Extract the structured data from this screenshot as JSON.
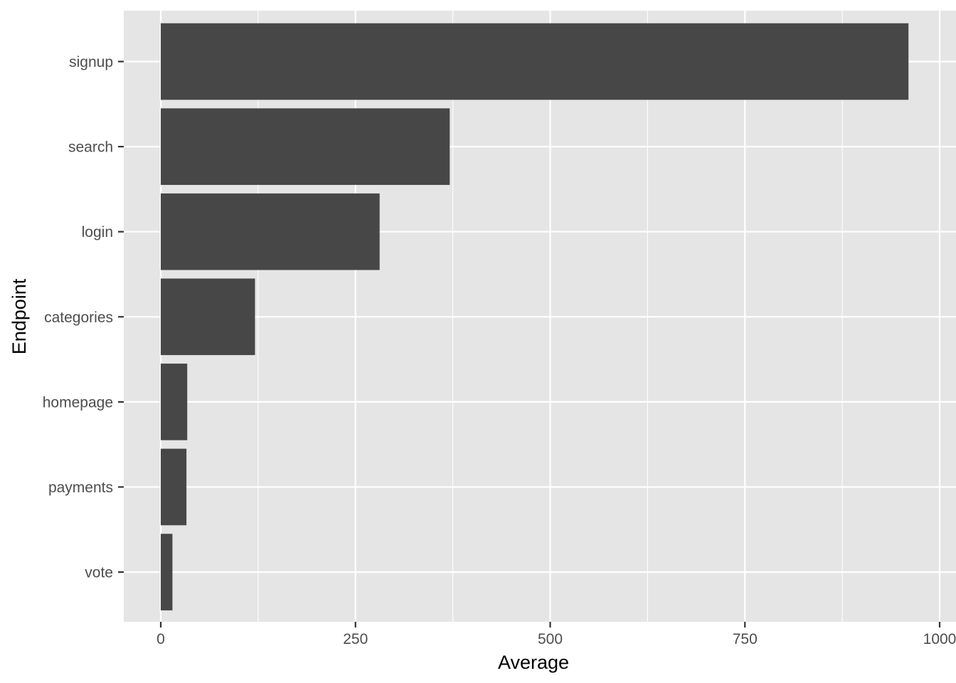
{
  "chart_data": {
    "type": "bar",
    "orientation": "horizontal",
    "categories": [
      "signup",
      "search",
      "login",
      "categories",
      "homepage",
      "payments",
      "vote"
    ],
    "values": [
      960,
      371,
      281,
      121,
      34,
      33,
      15
    ],
    "title": "",
    "xlabel": "Average",
    "ylabel": "Endpoint",
    "xlim": [
      -48,
      1000
    ],
    "x_ticks": [
      0,
      250,
      500,
      750,
      1000
    ],
    "x_tick_labels": [
      "0",
      "250",
      "500",
      "750",
      "1000"
    ],
    "grid": true,
    "legend": "none",
    "colors": {
      "bar": "#474747",
      "panel": "#e5e5e5",
      "grid": "#ffffff",
      "tick_text": "#4d4d4d"
    }
  }
}
